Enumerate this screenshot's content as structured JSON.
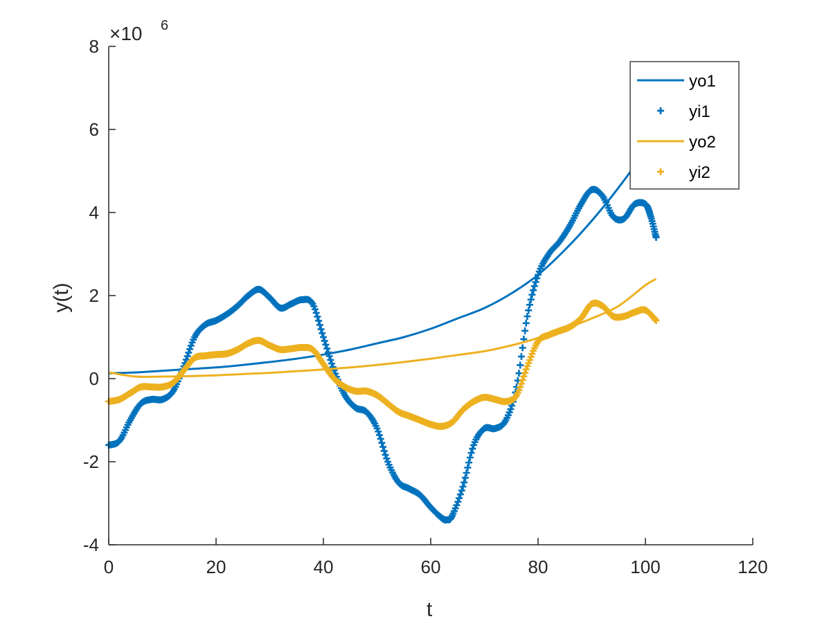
{
  "chart_data": {
    "type": "line",
    "xlabel": "t",
    "ylabel": "y(t)",
    "xlim": [
      0,
      120
    ],
    "ylim": [
      -4,
      8
    ],
    "y_multiplier": {
      "base": "×10",
      "exponent": "6"
    },
    "x_ticks": [
      0,
      20,
      40,
      60,
      80,
      100,
      120
    ],
    "y_ticks": [
      -4,
      -2,
      0,
      2,
      4,
      6,
      8
    ],
    "grid": false,
    "legend_position": "top-right",
    "series": [
      {
        "name": "yo1",
        "style": "line",
        "color": "#0072BD",
        "x": [
          0,
          5,
          10,
          15,
          20,
          25,
          30,
          35,
          40,
          45,
          50,
          55,
          60,
          65,
          70,
          75,
          80,
          85,
          90,
          95,
          100,
          102
        ],
        "y": [
          0.13,
          0.15,
          0.19,
          0.23,
          0.27,
          0.33,
          0.4,
          0.48,
          0.58,
          0.7,
          0.85,
          1.0,
          1.2,
          1.45,
          1.7,
          2.05,
          2.5,
          3.1,
          3.8,
          4.6,
          5.5,
          6.0
        ]
      },
      {
        "name": "yi1",
        "style": "markers",
        "color": "#0072BD",
        "x": [
          0,
          2,
          4,
          6,
          8,
          10,
          12,
          14,
          16,
          18,
          20,
          22,
          24,
          26,
          28,
          30,
          32,
          34,
          36,
          38,
          40,
          42,
          44,
          46,
          48,
          50,
          52,
          54,
          56,
          58,
          60,
          62,
          63,
          64,
          66,
          68,
          70,
          72,
          74,
          76,
          78,
          80,
          82,
          84,
          86,
          88,
          90,
          92,
          94,
          96,
          98,
          100,
          101,
          102
        ],
        "y": [
          -1.6,
          -1.5,
          -1.0,
          -0.6,
          -0.5,
          -0.5,
          -0.3,
          0.3,
          1.0,
          1.3,
          1.4,
          1.55,
          1.75,
          2.0,
          2.15,
          1.95,
          1.7,
          1.8,
          1.9,
          1.8,
          1.0,
          0.2,
          -0.4,
          -0.7,
          -0.8,
          -1.2,
          -2.0,
          -2.5,
          -2.65,
          -2.8,
          -3.1,
          -3.35,
          -3.4,
          -3.3,
          -2.6,
          -1.6,
          -1.2,
          -1.2,
          -1.0,
          -0.2,
          1.5,
          2.5,
          3.0,
          3.3,
          3.7,
          4.2,
          4.55,
          4.4,
          3.9,
          3.85,
          4.2,
          4.2,
          3.9,
          3.4
        ]
      },
      {
        "name": "yo2",
        "style": "line",
        "color": "#EDB120",
        "x": [
          0,
          5,
          10,
          15,
          20,
          25,
          30,
          35,
          40,
          45,
          50,
          55,
          60,
          65,
          70,
          75,
          80,
          85,
          90,
          95,
          100,
          102
        ],
        "y": [
          0.15,
          0.05,
          0.05,
          0.06,
          0.08,
          0.11,
          0.14,
          0.18,
          0.22,
          0.27,
          0.33,
          0.4,
          0.48,
          0.57,
          0.66,
          0.8,
          0.98,
          1.2,
          1.45,
          1.75,
          2.25,
          2.4
        ]
      },
      {
        "name": "yi2",
        "style": "markers",
        "color": "#EDB120",
        "x": [
          0,
          2,
          4,
          6,
          8,
          10,
          12,
          14,
          16,
          18,
          20,
          22,
          24,
          26,
          28,
          30,
          32,
          34,
          36,
          38,
          40,
          42,
          44,
          46,
          48,
          50,
          52,
          54,
          56,
          58,
          60,
          62,
          64,
          66,
          68,
          70,
          72,
          74,
          76,
          78,
          80,
          82,
          84,
          86,
          88,
          90,
          92,
          94,
          96,
          98,
          100,
          102
        ],
        "y": [
          -0.55,
          -0.5,
          -0.35,
          -0.2,
          -0.2,
          -0.2,
          -0.1,
          0.2,
          0.5,
          0.55,
          0.58,
          0.6,
          0.7,
          0.85,
          0.92,
          0.8,
          0.7,
          0.72,
          0.75,
          0.7,
          0.35,
          0.0,
          -0.2,
          -0.3,
          -0.3,
          -0.4,
          -0.6,
          -0.8,
          -0.9,
          -1.0,
          -1.1,
          -1.15,
          -1.05,
          -0.75,
          -0.55,
          -0.45,
          -0.5,
          -0.55,
          -0.4,
          0.3,
          0.9,
          1.05,
          1.15,
          1.25,
          1.45,
          1.8,
          1.75,
          1.5,
          1.5,
          1.6,
          1.65,
          1.4
        ]
      }
    ]
  }
}
